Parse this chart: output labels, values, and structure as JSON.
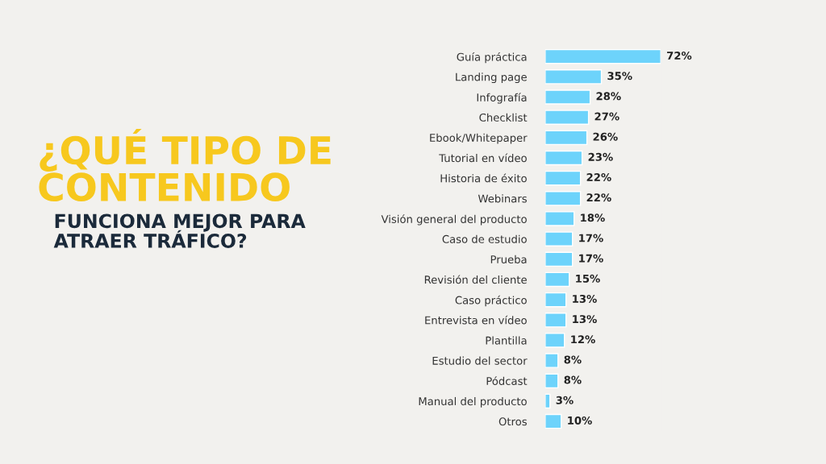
{
  "chart_data": {
    "type": "bar",
    "orientation": "horizontal",
    "title": "¿QUÉ TIPO DE\nCONTENIDO",
    "subtitle": "FUNCIONA MEJOR PARA\nATRAER TRÁFICO?",
    "categories": [
      "Guía práctica",
      "Landing page",
      "Infografía",
      "Checklist",
      "Ebook/Whitepaper",
      "Tutorial en vídeo",
      "Historia de éxito",
      "Webinars",
      "Visión general del producto",
      "Caso de estudio",
      "Prueba",
      "Revisión del cliente",
      "Caso práctico",
      "Entrevista en vídeo",
      "Plantilla",
      "Estudio del sector",
      "Pódcast",
      "Manual del producto",
      "Otros"
    ],
    "series": [
      {
        "color": "#6dd3fb",
        "values": [
          72,
          35,
          28,
          27,
          26,
          23,
          22,
          22,
          18,
          17,
          17,
          15,
          13,
          13,
          12,
          8,
          8,
          3,
          10
        ],
        "value_labels": [
          "72%",
          "35%",
          "28%",
          "27%",
          "26%",
          "23%",
          "22%",
          "22%",
          "18%",
          "17%",
          "17%",
          "15%",
          "13%",
          "13%",
          "12%",
          "8%",
          "8%",
          "3%",
          "10%"
        ]
      }
    ]
  }
}
